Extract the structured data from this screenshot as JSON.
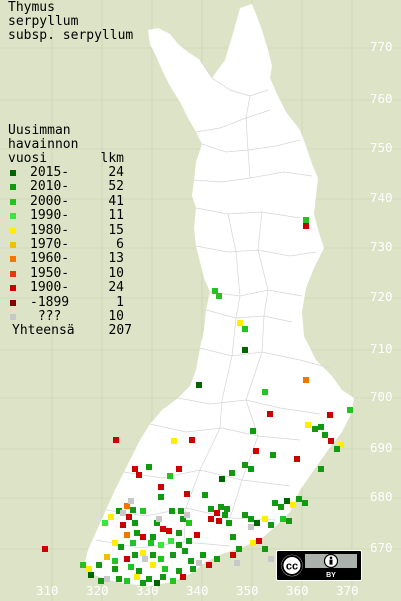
{
  "title": {
    "line1": "Thymus",
    "line2": "serpyllum",
    "line3": "subsp. serpyllum"
  },
  "legend": {
    "heading_line1": "Uusimman",
    "heading_line2": "havainnon",
    "heading_col_year": "vuosi",
    "heading_col_count": "lkm",
    "rows": [
      {
        "label": "2015-",
        "count": "24",
        "color": "#006400"
      },
      {
        "label": "2010-",
        "count": "52",
        "color": "#119a11"
      },
      {
        "label": "2000-",
        "count": "41",
        "color": "#22c422"
      },
      {
        "label": "1990-",
        "count": "11",
        "color": "#3ee43e"
      },
      {
        "label": "1980-",
        "count": "15",
        "color": "#ffee00"
      },
      {
        "label": "1970-",
        "count": "6",
        "color": "#f0c000"
      },
      {
        "label": "1960-",
        "count": "13",
        "color": "#ee7700"
      },
      {
        "label": "1950-",
        "count": "10",
        "color": "#e03a10"
      },
      {
        "label": "1900-",
        "count": "24",
        "color": "#cc0000"
      },
      {
        "label": "-1899",
        "count": "1",
        "color": "#880000"
      },
      {
        "label": "???",
        "count": "10",
        "color": "#c8c8c8"
      }
    ],
    "total_label": "Yhteensä",
    "total_count": "207"
  },
  "grid_labels": {
    "northing": [
      "770",
      "760",
      "750",
      "740",
      "730",
      "720",
      "710",
      "700",
      "690",
      "680",
      "670"
    ],
    "easting": [
      "310",
      "320",
      "330",
      "340",
      "350",
      "360",
      "370"
    ]
  },
  "license_badge": {
    "cc_symbol": "cc",
    "by_label": "BY"
  },
  "colors": {
    "background": "#dde3c6",
    "land": "#ffffff",
    "grid_label": "#ffffff",
    "border_line": "#d8d8d8"
  }
}
